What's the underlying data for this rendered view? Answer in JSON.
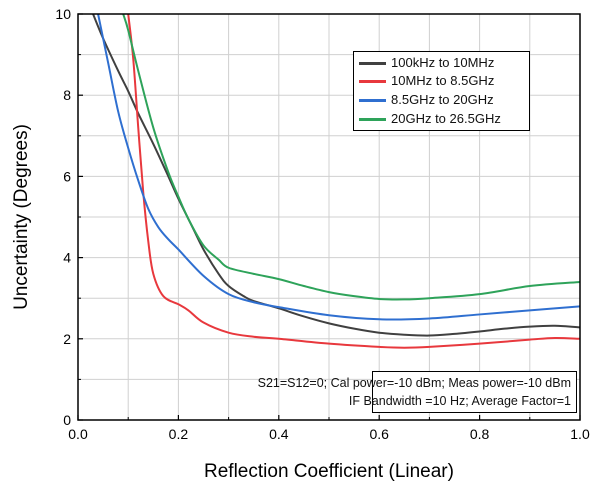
{
  "chart_data": {
    "type": "line",
    "title": "",
    "xlabel": "Reflection Coefficient (Linear)",
    "ylabel": "Uncertainty (Degrees)",
    "xlim": [
      0.0,
      1.0
    ],
    "ylim": [
      0,
      10
    ],
    "xticks": [
      "0.0",
      "0.2",
      "0.4",
      "0.6",
      "0.8",
      "1.0"
    ],
    "yticks": [
      "0",
      "2",
      "4",
      "6",
      "8",
      "10"
    ],
    "grid": true,
    "legend_position": "top-right",
    "series": [
      {
        "name": "100kHz to 10MHz",
        "color": "#404040",
        "x": [
          0.03,
          0.05,
          0.08,
          0.1,
          0.12,
          0.15,
          0.18,
          0.2,
          0.23,
          0.25,
          0.28,
          0.3,
          0.33,
          0.35,
          0.4,
          0.45,
          0.5,
          0.55,
          0.6,
          0.65,
          0.7,
          0.75,
          0.8,
          0.85,
          0.9,
          0.95,
          1.0
        ],
        "y": [
          10.0,
          9.4,
          8.6,
          8.1,
          7.55,
          6.8,
          6.0,
          5.45,
          4.7,
          4.2,
          3.6,
          3.3,
          3.05,
          2.93,
          2.75,
          2.55,
          2.38,
          2.25,
          2.15,
          2.1,
          2.08,
          2.12,
          2.18,
          2.25,
          2.3,
          2.32,
          2.28
        ]
      },
      {
        "name": "10MHz to 8.5GHz",
        "color": "#e8383d",
        "x": [
          0.1,
          0.11,
          0.12,
          0.13,
          0.14,
          0.15,
          0.17,
          0.2,
          0.22,
          0.25,
          0.3,
          0.35,
          0.4,
          0.5,
          0.6,
          0.65,
          0.7,
          0.8,
          0.9,
          0.95,
          1.0
        ],
        "y": [
          10.0,
          8.9,
          7.2,
          5.6,
          4.4,
          3.6,
          3.05,
          2.85,
          2.7,
          2.4,
          2.15,
          2.05,
          2.0,
          1.88,
          1.8,
          1.78,
          1.8,
          1.88,
          1.98,
          2.02,
          2.0
        ]
      },
      {
        "name": "8.5GHz to 20GHz",
        "color": "#2f6fd0",
        "x": [
          0.04,
          0.06,
          0.08,
          0.1,
          0.12,
          0.14,
          0.16,
          0.18,
          0.2,
          0.25,
          0.3,
          0.35,
          0.4,
          0.5,
          0.6,
          0.7,
          0.8,
          0.9,
          1.0
        ],
        "y": [
          10.0,
          8.8,
          7.6,
          6.7,
          5.9,
          5.2,
          4.75,
          4.45,
          4.2,
          3.55,
          3.1,
          2.9,
          2.78,
          2.58,
          2.48,
          2.5,
          2.6,
          2.7,
          2.8
        ]
      },
      {
        "name": "20GHz to 26.5GHz",
        "color": "#2ea35a",
        "x": [
          0.09,
          0.1,
          0.12,
          0.15,
          0.18,
          0.2,
          0.22,
          0.25,
          0.28,
          0.3,
          0.35,
          0.4,
          0.45,
          0.5,
          0.55,
          0.6,
          0.65,
          0.7,
          0.8,
          0.9,
          1.0
        ],
        "y": [
          10.0,
          9.6,
          8.6,
          7.2,
          6.1,
          5.5,
          4.95,
          4.3,
          3.95,
          3.75,
          3.6,
          3.47,
          3.3,
          3.15,
          3.05,
          2.98,
          2.97,
          3.0,
          3.1,
          3.3,
          3.4
        ]
      }
    ]
  },
  "legend": {
    "items": [
      {
        "label": "100kHz to 10MHz",
        "color": "#404040"
      },
      {
        "label": "10MHz to 8.5GHz",
        "color": "#e8383d"
      },
      {
        "label": "8.5GHz to 20GHz",
        "color": "#2f6fd0"
      },
      {
        "label": "20GHz to 26.5GHz",
        "color": "#2ea35a"
      }
    ]
  },
  "annotation": {
    "line1": "S21=S12=0; Cal power=-10 dBm; Meas power=-10 dBm",
    "line2": "IF Bandwidth =10 Hz; Average Factor=1"
  }
}
